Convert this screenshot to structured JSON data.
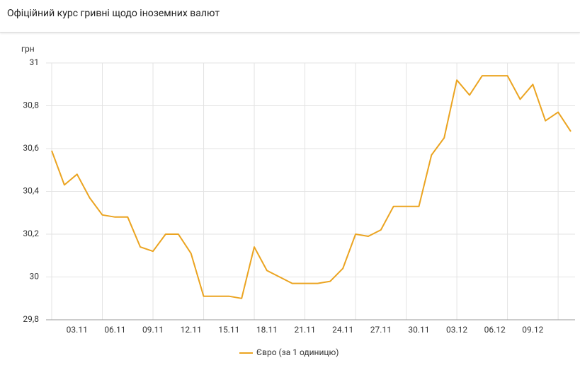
{
  "chart_data": {
    "type": "line",
    "title": "Офіційний курс гривні щодо іноземних валют",
    "y_label": "грн",
    "categories": [
      null,
      null,
      "03.11",
      null,
      null,
      "06.11",
      null,
      null,
      "09.11",
      null,
      null,
      "12.11",
      null,
      null,
      "15.11",
      null,
      null,
      "18.11",
      null,
      null,
      "21.11",
      null,
      null,
      "24.11",
      null,
      null,
      "27.11",
      null,
      null,
      "30.11",
      null,
      null,
      "03.12",
      null,
      null,
      "06.12",
      null,
      null,
      "09.12",
      null,
      null,
      null
    ],
    "series": [
      {
        "name": "Євро (за 1 одиницю)",
        "color": "#eba421",
        "values": [
          30.59,
          30.43,
          30.48,
          30.37,
          30.29,
          30.28,
          30.28,
          30.14,
          30.12,
          30.2,
          30.2,
          30.11,
          29.91,
          29.91,
          29.91,
          29.9,
          30.14,
          30.03,
          30.0,
          29.97,
          29.97,
          29.97,
          29.98,
          30.04,
          30.2,
          30.19,
          30.22,
          30.33,
          30.33,
          30.33,
          30.57,
          30.65,
          30.92,
          30.85,
          30.94,
          30.94,
          30.94,
          30.83,
          30.9,
          30.73,
          30.77,
          30.68
        ]
      }
    ],
    "ylim": [
      29.8,
      31
    ],
    "yticks": [
      {
        "value": 29.8,
        "label": "29,8"
      },
      30,
      {
        "value": 30.2,
        "label": "30,2"
      },
      {
        "value": 30.4,
        "label": "30,4"
      },
      {
        "value": 30.6,
        "label": "30,6"
      },
      {
        "value": 30.8,
        "label": "30,8"
      },
      31
    ],
    "grid": true
  }
}
